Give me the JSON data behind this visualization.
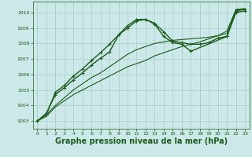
{
  "background_color": "#cce8e8",
  "grid_color": "#aacccc",
  "line_color": "#1a5c1a",
  "xlabel": "Graphe pression niveau de la mer (hPa)",
  "xlabel_fontsize": 7,
  "ylim": [
    1002.5,
    1010.7
  ],
  "xlim": [
    -0.5,
    23.5
  ],
  "yticks": [
    1003,
    1004,
    1005,
    1006,
    1007,
    1008,
    1009,
    1010
  ],
  "xticks": [
    0,
    1,
    2,
    3,
    4,
    5,
    6,
    7,
    8,
    9,
    10,
    11,
    12,
    13,
    14,
    15,
    16,
    17,
    18,
    19,
    20,
    21,
    22,
    23
  ],
  "series": [
    {
      "x": [
        0,
        1,
        2,
        3,
        4,
        5,
        6,
        7,
        8,
        9,
        10,
        11,
        12,
        13,
        14,
        15,
        16,
        17,
        18,
        19,
        20,
        21,
        22,
        23
      ],
      "y": [
        1003.0,
        1003.3,
        1003.9,
        1004.3,
        1004.7,
        1005.0,
        1005.3,
        1005.6,
        1005.9,
        1006.2,
        1006.5,
        1006.7,
        1006.9,
        1007.2,
        1007.4,
        1007.6,
        1007.8,
        1007.95,
        1008.1,
        1008.3,
        1008.5,
        1008.8,
        1010.15,
        1010.2
      ],
      "lw": 0.8,
      "markers": false
    },
    {
      "x": [
        0,
        1,
        2,
        3,
        4,
        5,
        6,
        7,
        8,
        9,
        10,
        11,
        12,
        13,
        14,
        15,
        16,
        17,
        18,
        19,
        20,
        21,
        22,
        23
      ],
      "y": [
        1003.0,
        1003.4,
        1004.0,
        1004.5,
        1005.0,
        1005.4,
        1005.8,
        1006.1,
        1006.5,
        1006.9,
        1007.3,
        1007.6,
        1007.8,
        1008.0,
        1008.1,
        1008.2,
        1008.25,
        1008.3,
        1008.35,
        1008.4,
        1008.5,
        1008.65,
        1010.2,
        1010.25
      ],
      "lw": 0.8,
      "markers": false
    },
    {
      "x": [
        0,
        1,
        2,
        3,
        4,
        5,
        6,
        7,
        8,
        9,
        10,
        11,
        12,
        13,
        14,
        15,
        16,
        17,
        18,
        19,
        20,
        21,
        22,
        23
      ],
      "y": [
        1003.0,
        1003.5,
        1004.7,
        1005.15,
        1005.65,
        1006.1,
        1006.6,
        1007.05,
        1007.45,
        1008.55,
        1009.15,
        1009.55,
        1009.55,
        1009.3,
        1008.75,
        1008.15,
        1008.05,
        1007.95,
        1007.95,
        1008.05,
        1008.35,
        1008.45,
        1010.0,
        1010.1
      ],
      "lw": 1.0,
      "markers": true
    },
    {
      "x": [
        0,
        1,
        2,
        3,
        4,
        5,
        6,
        7,
        8,
        9,
        10,
        11,
        12,
        13,
        14,
        15,
        16,
        17,
        21,
        22,
        23
      ],
      "y": [
        1003.0,
        1003.4,
        1004.85,
        1005.3,
        1005.9,
        1006.35,
        1006.9,
        1007.4,
        1007.95,
        1008.55,
        1009.0,
        1009.45,
        1009.55,
        1009.25,
        1008.45,
        1008.05,
        1007.95,
        1007.5,
        1008.45,
        1010.1,
        1010.2
      ],
      "lw": 1.0,
      "markers": true
    }
  ]
}
